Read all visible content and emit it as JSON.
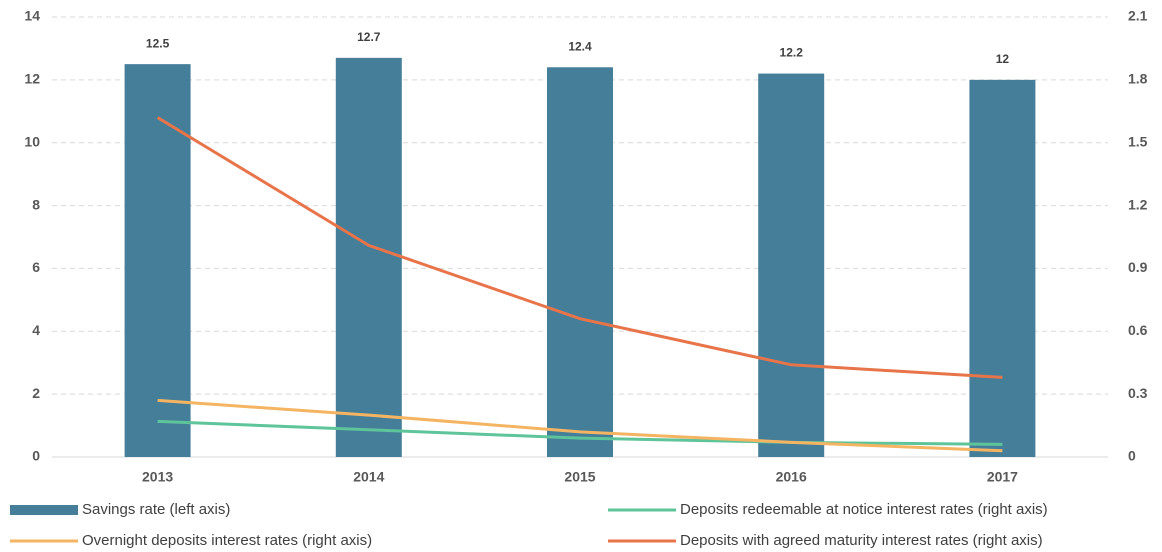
{
  "chart_data": {
    "type": "bar",
    "categories": [
      "2013",
      "2014",
      "2015",
      "2016",
      "2017"
    ],
    "ylim": [
      0,
      14
    ],
    "yticks": [
      0,
      2,
      4,
      6,
      8,
      10,
      12,
      14
    ],
    "y2lim": [
      0,
      2.1
    ],
    "y2ticks": [
      0,
      0.3,
      0.6,
      0.9,
      1.2,
      1.5,
      1.8,
      2.1
    ],
    "grid": true,
    "series": [
      {
        "name": "Savings rate (left axis)",
        "type": "bar",
        "color": "#457e99",
        "values": [
          12.5,
          12.7,
          12.4,
          12.2,
          12
        ]
      },
      {
        "name": "Deposits redeemable at notice interest rates (right axis)",
        "type": "line",
        "axis": "y2",
        "color": "#5ec49a",
        "values": [
          0.17,
          0.13,
          0.09,
          0.07,
          0.06
        ]
      },
      {
        "name": "Overnight deposits interest rates (right axis)",
        "type": "line",
        "axis": "y2",
        "color": "#f5b462",
        "values": [
          0.27,
          0.2,
          0.12,
          0.07,
          0.03
        ]
      },
      {
        "name": "Deposits with agreed maturity interest rates (right axis)",
        "type": "line",
        "axis": "y2",
        "color": "#e8744a",
        "values": [
          1.62,
          1.01,
          0.66,
          0.44,
          0.38
        ]
      }
    ]
  }
}
